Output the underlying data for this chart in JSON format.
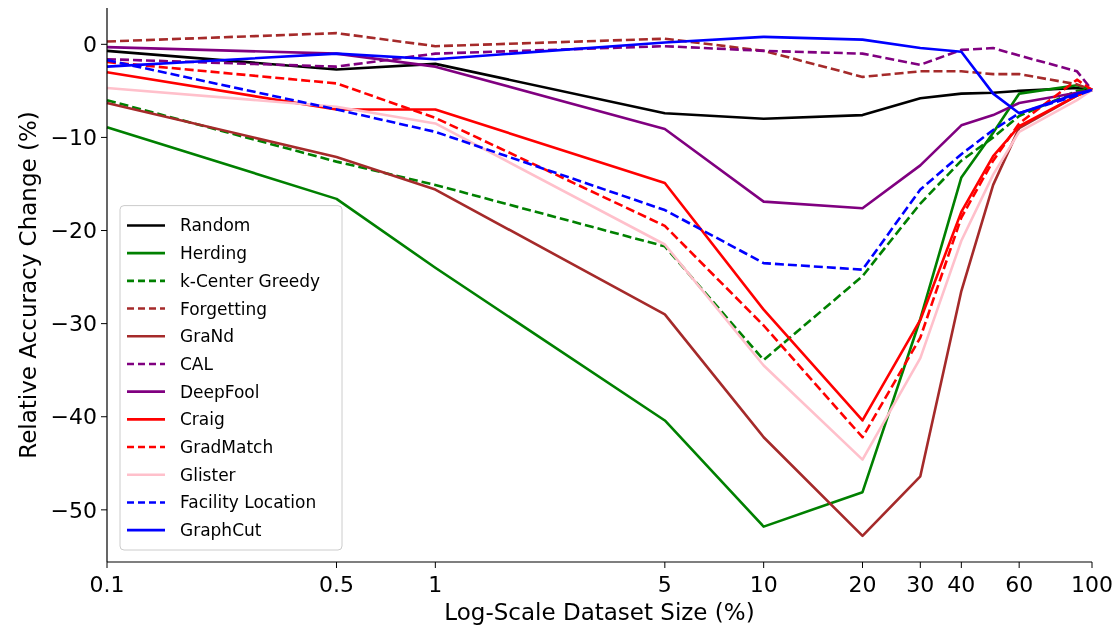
{
  "chart_data": {
    "type": "line",
    "xlabel": "Log-Scale Dataset Size (%)",
    "ylabel": "Relative Accuracy Change (%)",
    "log": "x",
    "grid": false,
    "legend": "bottom left",
    "marker": "none",
    "x": [
      0.1,
      0.5,
      1,
      5,
      10,
      20,
      30,
      40,
      50,
      60,
      90,
      100
    ],
    "xlim": [
      0.1,
      100
    ],
    "xticks": [
      0.1,
      0.5,
      1,
      5,
      10,
      20,
      30,
      40,
      60,
      100
    ],
    "ylim": [
      -55.6,
      3.9
    ],
    "yticks": [
      -50,
      -40,
      -30,
      -20,
      -10,
      0
    ],
    "series": [
      {
        "name": "Random",
        "color": "#000000",
        "line_style": "solid",
        "values": [
          -0.7,
          -2.7,
          -2.1,
          -7.4,
          -8.0,
          -7.6,
          -5.8,
          -5.3,
          -5.2,
          -5.0,
          -4.7,
          -4.9
        ]
      },
      {
        "name": "Herding",
        "color": "#008000",
        "line_style": "solid",
        "values": [
          -8.9,
          -16.6,
          -24,
          -40.4,
          -51.8,
          -48.1,
          -29.5,
          -14.3,
          -9.5,
          -5.3,
          -4.4,
          -4.9
        ]
      },
      {
        "name": "k-Center Greedy",
        "color": "#008000",
        "line_style": "dashed",
        "values": [
          -6.0,
          -12.6,
          -15.1,
          -21.7,
          -33.9,
          -24.9,
          -17.1,
          -12.5,
          -10,
          -7.7,
          -5,
          -4.9
        ]
      },
      {
        "name": "Forgetting",
        "color": "#a52a2a",
        "line_style": "dashed",
        "values": [
          0.3,
          1.2,
          -0.2,
          0.6,
          -0.7,
          -3.5,
          -2.9,
          -2.9,
          -3.2,
          -3.2,
          -4.3,
          -4.9
        ]
      },
      {
        "name": "GraNd",
        "color": "#a52a2a",
        "line_style": "solid",
        "values": [
          -6.3,
          -12.1,
          -15.6,
          -29.0,
          -42.2,
          -52.8,
          -46.4,
          -26.5,
          -15.1,
          -9.0,
          -5.5,
          -4.9
        ]
      },
      {
        "name": "CAL",
        "color": "#800080",
        "line_style": "dashed",
        "values": [
          -1.6,
          -2.4,
          -1.0,
          -0.2,
          -0.7,
          -1.0,
          -2.2,
          -0.6,
          -0.4,
          -1.2,
          -2.9,
          -4.9
        ]
      },
      {
        "name": "DeepFool",
        "color": "#800080",
        "line_style": "solid",
        "values": [
          -0.3,
          -1.0,
          -2.4,
          -9.1,
          -16.9,
          -17.6,
          -13.0,
          -8.7,
          -7.6,
          -6.3,
          -5.2,
          -4.9
        ]
      },
      {
        "name": "Craig",
        "color": "#ff0000",
        "line_style": "solid",
        "values": [
          -3.0,
          -7.0,
          -7.0,
          -14.9,
          -28.5,
          -40.4,
          -29.6,
          -18.0,
          -12.0,
          -8.8,
          -5.5,
          -4.9
        ]
      },
      {
        "name": "GradMatch",
        "color": "#ff0000",
        "line_style": "dashed",
        "values": [
          -1.9,
          -4.2,
          -7.9,
          -19.5,
          -30.2,
          -42.2,
          -31.5,
          -18.6,
          -12.5,
          -8.5,
          -3.8,
          -4.9
        ]
      },
      {
        "name": "Glister",
        "color": "#ffc0cb",
        "line_style": "solid",
        "values": [
          -4.7,
          -6.7,
          -8.5,
          -21.5,
          -34.5,
          -44.6,
          -33.7,
          -21.1,
          -14,
          -9.4,
          -6,
          -4.9
        ]
      },
      {
        "name": "Facility Location",
        "color": "#0000ff",
        "line_style": "dashed",
        "values": [
          -1.7,
          -7.0,
          -9.4,
          -17.8,
          -23.5,
          -24.2,
          -15.6,
          -11.8,
          -9.2,
          -7.4,
          -5.5,
          -4.9
        ]
      },
      {
        "name": "GraphCut",
        "color": "#0000ff",
        "line_style": "solid",
        "values": [
          -2.4,
          -1.0,
          -1.6,
          0.2,
          0.8,
          0.5,
          -0.4,
          -0.8,
          -5.3,
          -7.4,
          -5.3,
          -4.9
        ]
      }
    ]
  }
}
